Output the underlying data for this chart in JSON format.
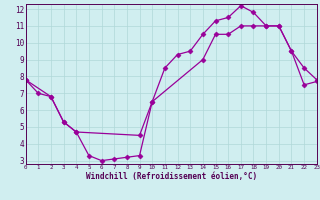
{
  "xlabel": "Windchill (Refroidissement éolien,°C)",
  "bg_color": "#d0eef0",
  "line_color": "#990099",
  "grid_color": "#b0d8d8",
  "x_line1": [
    0,
    1,
    2,
    3,
    4,
    5,
    6,
    7,
    8,
    9,
    10,
    11,
    12,
    13,
    14,
    15,
    16,
    17,
    18,
    19,
    20,
    21,
    22,
    23
  ],
  "y_line1": [
    7.8,
    7.0,
    6.8,
    5.3,
    4.7,
    3.3,
    3.0,
    3.1,
    3.2,
    3.3,
    6.5,
    8.5,
    9.3,
    9.5,
    10.5,
    11.3,
    11.5,
    12.2,
    11.8,
    11.0,
    11.0,
    9.5,
    8.5,
    7.8
  ],
  "x_line2": [
    0,
    2,
    3,
    4,
    9,
    10,
    14,
    15,
    16,
    17,
    18,
    19,
    20,
    21,
    22,
    23
  ],
  "y_line2": [
    7.8,
    6.8,
    5.3,
    4.7,
    4.5,
    6.5,
    9.0,
    10.5,
    10.5,
    11.0,
    11.0,
    11.0,
    11.0,
    9.5,
    7.5,
    7.7
  ],
  "xlim": [
    0,
    23
  ],
  "ylim": [
    2.8,
    12.3
  ],
  "xticks": [
    0,
    1,
    2,
    3,
    4,
    5,
    6,
    7,
    8,
    9,
    10,
    11,
    12,
    13,
    14,
    15,
    16,
    17,
    18,
    19,
    20,
    21,
    22,
    23
  ],
  "yticks": [
    3,
    4,
    5,
    6,
    7,
    8,
    9,
    10,
    11,
    12
  ],
  "markersize": 2.5,
  "linewidth": 0.9
}
